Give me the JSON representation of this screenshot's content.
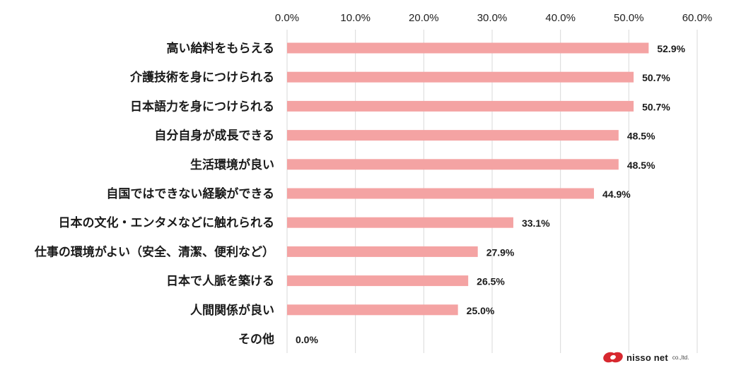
{
  "chart_data": {
    "type": "bar",
    "orientation": "horizontal",
    "categories": [
      "高い給料をもらえる",
      "介護技術を身につけられる",
      "日本語力を身につけられる",
      "自分自身が成長できる",
      "生活環境が良い",
      "自国ではできない経験ができる",
      "日本の文化・エンタメなどに触れられる",
      "仕事の環境がよい（安全、清潔、便利など）",
      "日本で人脈を築ける",
      "人間関係が良い",
      "その他"
    ],
    "values": [
      52.9,
      50.7,
      50.7,
      48.5,
      48.5,
      44.9,
      33.1,
      27.9,
      26.5,
      25.0,
      0.0
    ],
    "data_labels": [
      "52.9%",
      "50.7%",
      "50.7%",
      "48.5%",
      "48.5%",
      "44.9%",
      "33.1%",
      "27.9%",
      "26.5%",
      "25.0%",
      "0.0%"
    ],
    "xlim": [
      0,
      60
    ],
    "x_ticks": [
      0,
      10,
      20,
      30,
      40,
      50,
      60
    ],
    "x_tick_labels": [
      "0.0%",
      "10.0%",
      "20.0%",
      "30.0%",
      "40.0%",
      "50.0%",
      "60.0%"
    ],
    "x_axis_position": "top",
    "grid": true,
    "bar_color": "#f4a3a3",
    "title": "",
    "xlabel": "",
    "ylabel": ""
  },
  "logo": {
    "brand": "nisso net",
    "suffix": "co.,ltd.",
    "color": "#d7282f",
    "icon": "nisso-logo-icon"
  }
}
